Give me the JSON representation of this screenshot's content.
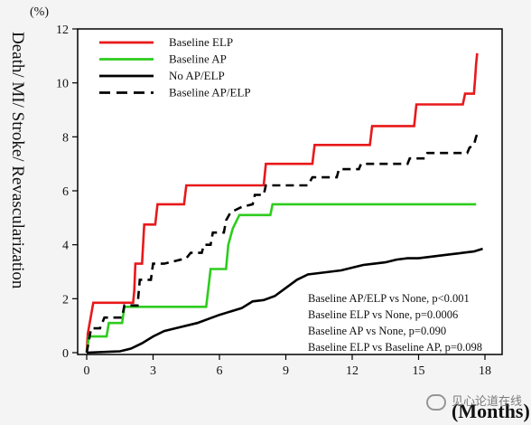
{
  "chart_data": {
    "type": "line",
    "unit_label": "(%)",
    "ylabel": "Death/ MI/ Stroke/ Revascularization",
    "xlabel": "(Months)",
    "xlim": [
      0,
      18
    ],
    "ylim": [
      0,
      12
    ],
    "xticks": [
      0,
      3,
      6,
      9,
      12,
      15,
      18
    ],
    "yticks": [
      0,
      2,
      4,
      6,
      8,
      10,
      12
    ],
    "grid": false,
    "legend_position": "top-left",
    "series": [
      {
        "name": "Baseline  ELP",
        "color": "#e8191a",
        "style": "solid",
        "points": [
          [
            0,
            0
          ],
          [
            0.05,
            0.7
          ],
          [
            0.3,
            1.85
          ],
          [
            2.1,
            1.85
          ],
          [
            2.15,
            2.3
          ],
          [
            2.2,
            3.3
          ],
          [
            2.5,
            3.3
          ],
          [
            2.6,
            4.75
          ],
          [
            3.1,
            4.75
          ],
          [
            3.2,
            5.5
          ],
          [
            4.4,
            5.5
          ],
          [
            4.5,
            6.2
          ],
          [
            8.0,
            6.2
          ],
          [
            8.1,
            7.0
          ],
          [
            10.2,
            7.0
          ],
          [
            10.3,
            7.7
          ],
          [
            12.8,
            7.7
          ],
          [
            12.9,
            8.4
          ],
          [
            14.8,
            8.4
          ],
          [
            14.9,
            9.2
          ],
          [
            17.0,
            9.2
          ],
          [
            17.1,
            9.6
          ],
          [
            17.5,
            9.6
          ],
          [
            17.55,
            10.1
          ],
          [
            17.6,
            10.7
          ],
          [
            17.65,
            11.1
          ]
        ]
      },
      {
        "name": "Baseline  AP",
        "color": "#2ecc1e",
        "style": "solid",
        "points": [
          [
            0,
            0
          ],
          [
            0.1,
            0.6
          ],
          [
            0.9,
            0.6
          ],
          [
            1.0,
            1.1
          ],
          [
            1.6,
            1.1
          ],
          [
            1.7,
            1.7
          ],
          [
            5.4,
            1.7
          ],
          [
            5.5,
            2.4
          ],
          [
            5.6,
            3.1
          ],
          [
            6.3,
            3.1
          ],
          [
            6.4,
            4.0
          ],
          [
            6.6,
            4.6
          ],
          [
            6.9,
            5.1
          ],
          [
            8.3,
            5.1
          ],
          [
            8.4,
            5.5
          ],
          [
            17.6,
            5.5
          ]
        ]
      },
      {
        "name": "No AP/ELP",
        "color": "#000000",
        "style": "solid",
        "points": [
          [
            0,
            0
          ],
          [
            1.5,
            0.05
          ],
          [
            2.0,
            0.15
          ],
          [
            2.5,
            0.35
          ],
          [
            3.0,
            0.6
          ],
          [
            3.5,
            0.8
          ],
          [
            4.0,
            0.9
          ],
          [
            5.0,
            1.1
          ],
          [
            6.0,
            1.4
          ],
          [
            7.0,
            1.65
          ],
          [
            7.5,
            1.9
          ],
          [
            8.0,
            1.95
          ],
          [
            8.5,
            2.1
          ],
          [
            9.0,
            2.4
          ],
          [
            9.5,
            2.7
          ],
          [
            10.0,
            2.9
          ],
          [
            10.5,
            2.95
          ],
          [
            11.0,
            3.0
          ],
          [
            11.5,
            3.05
          ],
          [
            12.0,
            3.15
          ],
          [
            12.5,
            3.25
          ],
          [
            13.0,
            3.3
          ],
          [
            13.5,
            3.35
          ],
          [
            14.0,
            3.45
          ],
          [
            14.5,
            3.5
          ],
          [
            15.0,
            3.5
          ],
          [
            15.5,
            3.55
          ],
          [
            16.0,
            3.6
          ],
          [
            16.5,
            3.65
          ],
          [
            17.0,
            3.7
          ],
          [
            17.5,
            3.75
          ],
          [
            17.9,
            3.85
          ]
        ]
      },
      {
        "name": "Baseline  AP/ELP",
        "color": "#000000",
        "style": "dashed",
        "points": [
          [
            0,
            0
          ],
          [
            0.2,
            0.9
          ],
          [
            0.6,
            0.9
          ],
          [
            0.8,
            1.3
          ],
          [
            1.6,
            1.3
          ],
          [
            1.7,
            1.75
          ],
          [
            2.3,
            1.75
          ],
          [
            2.4,
            2.7
          ],
          [
            2.9,
            2.7
          ],
          [
            3.0,
            3.3
          ],
          [
            3.5,
            3.3
          ],
          [
            4.5,
            3.5
          ],
          [
            4.7,
            3.7
          ],
          [
            5.2,
            3.7
          ],
          [
            5.3,
            4.0
          ],
          [
            5.6,
            4.0
          ],
          [
            5.7,
            4.45
          ],
          [
            6.2,
            4.45
          ],
          [
            6.3,
            4.9
          ],
          [
            6.5,
            5.2
          ],
          [
            7.0,
            5.4
          ],
          [
            7.5,
            5.5
          ],
          [
            7.6,
            5.85
          ],
          [
            8.0,
            5.85
          ],
          [
            8.1,
            6.2
          ],
          [
            10.0,
            6.2
          ],
          [
            10.2,
            6.5
          ],
          [
            11.3,
            6.5
          ],
          [
            11.4,
            6.8
          ],
          [
            12.3,
            6.8
          ],
          [
            12.4,
            7.0
          ],
          [
            14.5,
            7.0
          ],
          [
            14.6,
            7.2
          ],
          [
            15.3,
            7.2
          ],
          [
            15.4,
            7.4
          ],
          [
            17.2,
            7.4
          ],
          [
            17.3,
            7.6
          ],
          [
            17.5,
            7.7
          ],
          [
            17.6,
            8.0
          ],
          [
            17.7,
            8.2
          ]
        ]
      }
    ],
    "annotations": [
      "Baseline  AP/ELP vs None, p<0.001",
      "Baseline  ELP vs None, p=0.0006",
      "Baseline  AP vs None, p=0.090",
      "Baseline  ELP vs Baseline  AP, p=0.098"
    ]
  },
  "watermark": "见心论道在线"
}
